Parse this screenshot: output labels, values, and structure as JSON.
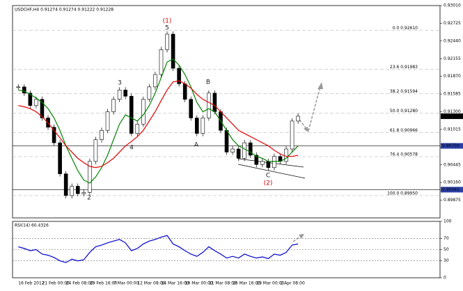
{
  "chart_data": {
    "type": "candlestick",
    "title": "USDCHF,H4 0.91274 0.91274 0.91222 0.91228",
    "categories": [
      "16 Feb 2012",
      null,
      null,
      null,
      "21 Feb 00:00",
      null,
      null,
      null,
      "24 Feb 08:00",
      null,
      null,
      null,
      "29 Feb 16:00",
      null,
      null,
      null,
      "7 Mar 00:00",
      null,
      null,
      null,
      "12 Mar 08:00",
      null,
      null,
      null,
      "14 Mar 16:00",
      null,
      null,
      null,
      "19 Mar 00:00",
      null,
      null,
      null,
      "21 Mar 08:00",
      null,
      null,
      null,
      "26 Mar 16:00",
      null,
      null,
      null,
      "29 Mar 00:00",
      null,
      null,
      null,
      "2 Apr 08:00",
      null,
      null,
      null
    ],
    "close": [
      0.917,
      0.916,
      0.914,
      0.915,
      0.912,
      0.9105,
      0.908,
      0.903,
      0.8995,
      0.901,
      0.8998,
      0.9,
      0.905,
      0.9085,
      0.91,
      0.913,
      0.915,
      0.9165,
      0.9155,
      0.9095,
      0.911,
      0.915,
      0.917,
      0.919,
      0.923,
      0.9255,
      0.92,
      0.9175,
      0.915,
      0.912,
      0.9095,
      0.912,
      0.916,
      0.913,
      0.91,
      0.9065,
      0.907,
      0.9055,
      0.908,
      0.906,
      0.9045,
      0.905,
      0.904,
      0.9058,
      0.905,
      0.907,
      0.9115,
      0.91228
    ],
    "up_color": "#ffffff",
    "down_color": "#000000",
    "series": [
      {
        "color": "#008000",
        "values": [
          0.9165,
          0.9163,
          0.9158,
          0.9152,
          0.9145,
          0.9135,
          0.912,
          0.91,
          0.9075,
          0.9055,
          0.9035,
          0.902,
          0.9015,
          0.9025,
          0.904,
          0.906,
          0.9085,
          0.911,
          0.9125,
          0.912,
          0.9115,
          0.9125,
          0.914,
          0.916,
          0.9185,
          0.921,
          0.9215,
          0.9205,
          0.919,
          0.917,
          0.9145,
          0.913,
          0.9135,
          0.913,
          0.9115,
          0.91,
          0.9085,
          0.9075,
          0.907,
          0.9065,
          0.9058,
          0.9055,
          0.905,
          0.905,
          0.905,
          0.9055,
          0.9065,
          0.9075
        ]
      },
      {
        "color": "#e00000",
        "values": [
          0.914,
          0.9138,
          0.9135,
          0.913,
          0.9122,
          0.9112,
          0.91,
          0.9088,
          0.9075,
          0.9065,
          0.9055,
          0.9048,
          0.9042,
          0.904,
          0.9042,
          0.9048,
          0.9055,
          0.9065,
          0.9075,
          0.9082,
          0.909,
          0.91,
          0.9115,
          0.913,
          0.9148,
          0.9165,
          0.9178,
          0.918,
          0.9175,
          0.9168,
          0.9158,
          0.915,
          0.9145,
          0.914,
          0.913,
          0.912,
          0.911,
          0.91,
          0.9095,
          0.909,
          0.9085,
          0.908,
          0.9075,
          0.9068,
          0.9062,
          0.9058,
          0.9058,
          0.906
        ]
      }
    ],
    "ylim": [
      0.8959,
      0.9301
    ],
    "yticks": [
      {
        "value": 0.9301,
        "label": "0.93010"
      },
      {
        "value": 0.92725,
        "label": "0.92725"
      },
      {
        "value": 0.9244,
        "label": "0.92440"
      },
      {
        "value": 0.92155,
        "label": "0.92155"
      },
      {
        "value": 0.9187,
        "label": "0.91870"
      },
      {
        "value": 0.91585,
        "label": "0.91585"
      },
      {
        "value": 0.913,
        "label": "0.91300"
      },
      {
        "value": 0.91015,
        "label": "0.91015"
      },
      {
        "value": 0.9073,
        "label": "0.90730"
      },
      {
        "value": 0.90445,
        "label": "0.90445"
      },
      {
        "value": 0.9016,
        "label": "0.90160"
      },
      {
        "value": 0.89875,
        "label": "0.89875"
      }
    ],
    "fib_levels": [
      {
        "value": 0.9261,
        "label": "0.0 0.92610"
      },
      {
        "value": 0.91983,
        "label": "23.6 0.91983"
      },
      {
        "value": 0.91594,
        "label": "38.2 0.91594"
      },
      {
        "value": 0.9128,
        "label": "50.0 0.91280"
      },
      {
        "value": 0.90966,
        "label": "61.8 0.90966"
      },
      {
        "value": 0.90578,
        "label": "76.4 0.90578"
      },
      {
        "value": 0.8995,
        "label": "100.0 0.89950"
      }
    ],
    "price_lines": [
      {
        "value": 0.9075,
        "label": "0.90750"
      },
      {
        "value": 0.90045,
        "label": "0.90045"
      }
    ],
    "current_price": {
      "value": 0.91228,
      "label": "0.91228"
    },
    "rsi": {
      "title": "RSI(14) 60.4326",
      "color": "#0000cc",
      "values": [
        55,
        52,
        48,
        50,
        42,
        40,
        36,
        30,
        27,
        33,
        30,
        32,
        45,
        55,
        58,
        62,
        65,
        68,
        62,
        48,
        52,
        60,
        65,
        68,
        72,
        75,
        60,
        55,
        48,
        42,
        38,
        45,
        55,
        48,
        42,
        35,
        38,
        35,
        42,
        38,
        35,
        37,
        34,
        42,
        40,
        45,
        58,
        60
      ],
      "ylim": [
        0,
        100
      ],
      "yticks": [
        100,
        70,
        50,
        30,
        0
      ],
      "levels": [
        70,
        50,
        30
      ]
    },
    "wave_labels": [
      "(1)",
      "5",
      "3",
      "4",
      "2",
      "A",
      "B",
      "C",
      "(2)"
    ]
  }
}
